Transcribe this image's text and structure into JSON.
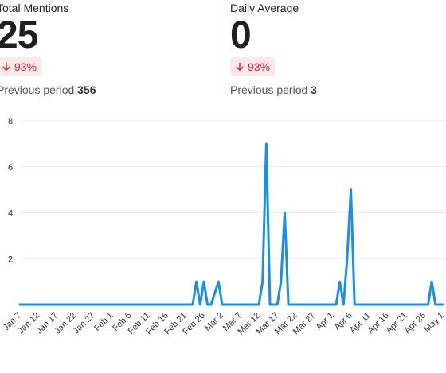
{
  "stats": [
    {
      "label": "Total Mentions",
      "value": "25",
      "change": "93%",
      "previous_label": "Previous period",
      "previous_value": "356"
    },
    {
      "label": "Daily Average",
      "value": "0",
      "change": "93%",
      "previous_label": "Previous period",
      "previous_value": "3"
    }
  ],
  "colors": {
    "line": "#1a8fe3",
    "badge_bg": "#fde8ea",
    "badge_text": "#d0283a"
  },
  "chart_data": {
    "type": "line",
    "title": "",
    "xlabel": "",
    "ylabel": "",
    "ylim": [
      0,
      8
    ],
    "yticks": [
      2,
      4,
      6,
      8
    ],
    "grid": true,
    "legend": "none",
    "x_ticks": [
      "Jan 7",
      "Jan 12",
      "Jan 17",
      "Jan 22",
      "Jan 27",
      "Feb 1",
      "Feb 6",
      "Feb 11",
      "Feb 16",
      "Feb 21",
      "Feb 26",
      "Mar 2",
      "Mar 7",
      "Mar 12",
      "Mar 17",
      "Mar 22",
      "Mar 27",
      "Apr 1",
      "Apr 6",
      "Apr 11",
      "Apr 16",
      "Apr 21",
      "Apr 26",
      "May 1"
    ],
    "series": [
      {
        "name": "",
        "x": [
          "Jan 7",
          "Feb 23",
          "Feb 24",
          "Feb 25",
          "Feb 26",
          "Feb 27",
          "Feb 28",
          "Mar 1",
          "Mar 2",
          "Mar 3",
          "Mar 12",
          "Mar 13",
          "Mar 14",
          "Mar 15",
          "Mar 17",
          "Mar 18",
          "Mar 19",
          "Mar 20",
          "Apr 2",
          "Apr 3",
          "Apr 4",
          "Apr 5",
          "Apr 6",
          "Apr 7",
          "Apr 27",
          "Apr 28",
          "Apr 29",
          "May 1"
        ],
        "values": [
          0,
          0,
          1,
          0,
          1,
          0,
          0,
          1,
          0,
          0,
          0,
          1,
          7,
          0,
          0,
          1,
          4,
          0,
          0,
          1,
          0,
          2,
          5,
          0,
          0,
          1,
          0,
          0
        ]
      }
    ]
  }
}
